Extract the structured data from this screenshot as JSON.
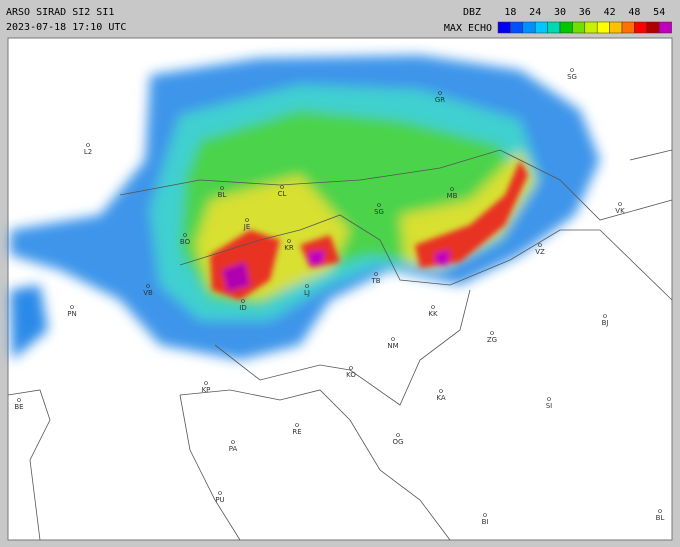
{
  "header": {
    "title": "ARSO SIRAD SI2 SI1",
    "timestamp": "2023-07-18 17:10 UTC"
  },
  "legend": {
    "unit": "DBZ",
    "product": "MAX ECHO",
    "ticks": [
      18,
      24,
      30,
      36,
      42,
      48,
      54
    ],
    "colors": [
      "#0000f0",
      "#0050ff",
      "#0090ff",
      "#00c8ff",
      "#00d8b0",
      "#00c800",
      "#70e000",
      "#c8f000",
      "#ffff00",
      "#ffc000",
      "#ff7000",
      "#ff0000",
      "#b00000",
      "#c000c0"
    ]
  },
  "places": [
    {
      "label": "L2"
    },
    {
      "label": "SG"
    },
    {
      "label": "GR"
    },
    {
      "label": "BL"
    },
    {
      "label": "CL"
    },
    {
      "label": "MB"
    },
    {
      "label": "SG"
    },
    {
      "label": "VK"
    },
    {
      "label": "BO"
    },
    {
      "label": "JE"
    },
    {
      "label": "KR"
    },
    {
      "label": "VZ"
    },
    {
      "label": "TB"
    },
    {
      "label": "VB"
    },
    {
      "label": "PN"
    },
    {
      "label": "LJ"
    },
    {
      "label": "ID"
    },
    {
      "label": "KK"
    },
    {
      "label": "BJ"
    },
    {
      "label": "NM"
    },
    {
      "label": "ZG"
    },
    {
      "label": "KO"
    },
    {
      "label": "KP"
    },
    {
      "label": "KA"
    },
    {
      "label": "SI"
    },
    {
      "label": "BE"
    },
    {
      "label": "RE"
    },
    {
      "label": "OG"
    },
    {
      "label": "PA"
    },
    {
      "label": "PU"
    },
    {
      "label": "BI"
    },
    {
      "label": "BL"
    }
  ]
}
